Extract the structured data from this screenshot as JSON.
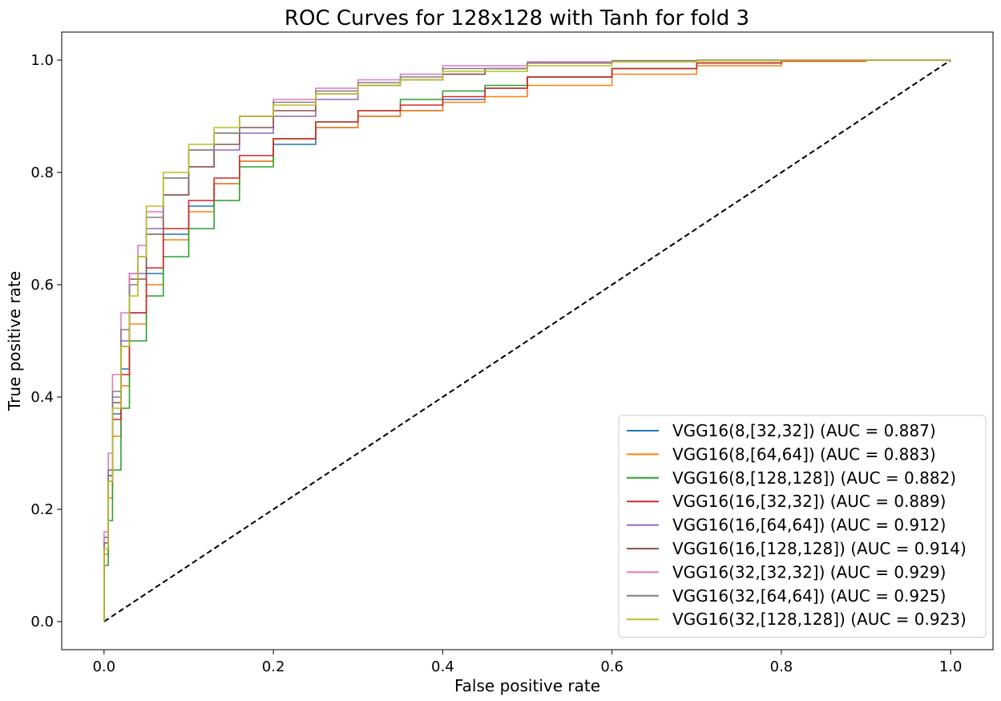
{
  "chart_data": {
    "type": "line",
    "title": "ROC Curves for 128x128 with Tanh for fold 3",
    "xlabel": "False positive rate",
    "ylabel": "True positive rate",
    "xlim": [
      -0.05,
      1.05
    ],
    "ylim": [
      -0.05,
      1.05
    ],
    "xticks": [
      0.0,
      0.2,
      0.4,
      0.6,
      0.8,
      1.0
    ],
    "yticks": [
      0.0,
      0.2,
      0.4,
      0.6,
      0.8,
      1.0
    ],
    "xtick_labels": [
      "0.0",
      "0.2",
      "0.4",
      "0.6",
      "0.8",
      "1.0"
    ],
    "ytick_labels": [
      "0.0",
      "0.2",
      "0.4",
      "0.6",
      "0.8",
      "1.0"
    ],
    "grid": false,
    "legend_position": "bottom-right",
    "reference_line": {
      "x": [
        0,
        1
      ],
      "y": [
        0,
        1
      ],
      "color": "#000000",
      "style": "dashed"
    },
    "series": [
      {
        "name": "VGG16(8,[32,32]) (AUC = 0.887)",
        "color": "#1f77b4",
        "x": [
          0,
          0.005,
          0.01,
          0.02,
          0.03,
          0.05,
          0.07,
          0.1,
          0.13,
          0.16,
          0.2,
          0.25,
          0.3,
          0.35,
          0.4,
          0.45,
          0.5,
          0.6,
          0.7,
          0.8,
          0.9,
          1.0
        ],
        "y": [
          0,
          0.15,
          0.26,
          0.37,
          0.45,
          0.55,
          0.62,
          0.69,
          0.74,
          0.78,
          0.82,
          0.85,
          0.88,
          0.9,
          0.91,
          0.93,
          0.95,
          0.97,
          0.985,
          0.995,
          0.999,
          1.0
        ]
      },
      {
        "name": "VGG16(8,[64,64]) (AUC = 0.883)",
        "color": "#ff7f0e",
        "x": [
          0,
          0.005,
          0.01,
          0.02,
          0.03,
          0.05,
          0.07,
          0.1,
          0.13,
          0.16,
          0.2,
          0.25,
          0.3,
          0.35,
          0.4,
          0.45,
          0.5,
          0.6,
          0.7,
          0.8,
          0.9,
          1.0
        ],
        "y": [
          0,
          0.12,
          0.22,
          0.33,
          0.42,
          0.53,
          0.6,
          0.68,
          0.73,
          0.78,
          0.82,
          0.86,
          0.88,
          0.9,
          0.91,
          0.925,
          0.935,
          0.955,
          0.975,
          0.99,
          0.998,
          1.0
        ]
      },
      {
        "name": "VGG16(8,[128,128]) (AUC = 0.882)",
        "color": "#2ca02c",
        "x": [
          0,
          0.005,
          0.01,
          0.02,
          0.03,
          0.05,
          0.07,
          0.1,
          0.13,
          0.16,
          0.2,
          0.25,
          0.3,
          0.35,
          0.4,
          0.45,
          0.5,
          0.6,
          0.7,
          0.8,
          0.9,
          1.0
        ],
        "y": [
          0,
          0.1,
          0.18,
          0.27,
          0.38,
          0.5,
          0.58,
          0.65,
          0.7,
          0.75,
          0.81,
          0.86,
          0.89,
          0.91,
          0.93,
          0.945,
          0.955,
          0.97,
          0.985,
          0.995,
          0.999,
          1.0
        ]
      },
      {
        "name": "VGG16(16,[32,32]) (AUC = 0.889)",
        "color": "#d62728",
        "x": [
          0,
          0.005,
          0.01,
          0.02,
          0.03,
          0.05,
          0.07,
          0.1,
          0.13,
          0.16,
          0.2,
          0.25,
          0.3,
          0.35,
          0.4,
          0.45,
          0.5,
          0.6,
          0.7,
          0.8,
          0.9,
          1.0
        ],
        "y": [
          0,
          0.14,
          0.25,
          0.36,
          0.44,
          0.55,
          0.63,
          0.7,
          0.75,
          0.79,
          0.83,
          0.86,
          0.89,
          0.91,
          0.92,
          0.935,
          0.95,
          0.97,
          0.985,
          0.995,
          0.999,
          1.0
        ]
      },
      {
        "name": "VGG16(16,[64,64]) (AUC = 0.912)",
        "color": "#9467bd",
        "x": [
          0,
          0.005,
          0.01,
          0.02,
          0.03,
          0.05,
          0.07,
          0.1,
          0.13,
          0.16,
          0.2,
          0.25,
          0.3,
          0.35,
          0.4,
          0.45,
          0.5,
          0.6,
          0.7,
          0.8,
          0.9,
          1.0
        ],
        "y": [
          0,
          0.15,
          0.27,
          0.4,
          0.5,
          0.62,
          0.7,
          0.76,
          0.81,
          0.84,
          0.87,
          0.9,
          0.93,
          0.955,
          0.965,
          0.975,
          0.985,
          0.995,
          0.998,
          0.999,
          1.0,
          1.0
        ]
      },
      {
        "name": "VGG16(16,[128,128]) (AUC = 0.914)",
        "color": "#8c564b",
        "x": [
          0,
          0.005,
          0.01,
          0.02,
          0.03,
          0.05,
          0.07,
          0.1,
          0.13,
          0.16,
          0.2,
          0.25,
          0.3,
          0.35,
          0.4,
          0.45,
          0.5,
          0.6,
          0.7,
          0.8,
          0.9,
          1.0
        ],
        "y": [
          0,
          0.14,
          0.26,
          0.39,
          0.49,
          0.61,
          0.69,
          0.76,
          0.81,
          0.85,
          0.88,
          0.91,
          0.94,
          0.955,
          0.965,
          0.975,
          0.985,
          0.995,
          0.998,
          0.999,
          1.0,
          1.0
        ]
      },
      {
        "name": "VGG16(32,[32,32]) (AUC = 0.929)",
        "color": "#e377c2",
        "x": [
          0,
          0.005,
          0.01,
          0.02,
          0.03,
          0.04,
          0.05,
          0.07,
          0.1,
          0.13,
          0.16,
          0.2,
          0.25,
          0.3,
          0.35,
          0.4,
          0.5,
          0.6,
          0.7,
          0.8,
          0.9,
          1.0
        ],
        "y": [
          0,
          0.16,
          0.3,
          0.44,
          0.55,
          0.62,
          0.67,
          0.73,
          0.79,
          0.84,
          0.87,
          0.9,
          0.93,
          0.95,
          0.965,
          0.975,
          0.99,
          0.997,
          0.999,
          1.0,
          1.0,
          1.0
        ]
      },
      {
        "name": "VGG16(32,[64,64]) (AUC = 0.925)",
        "color": "#7f7f7f",
        "x": [
          0,
          0.005,
          0.01,
          0.02,
          0.03,
          0.04,
          0.05,
          0.07,
          0.1,
          0.13,
          0.16,
          0.2,
          0.25,
          0.3,
          0.35,
          0.4,
          0.5,
          0.6,
          0.7,
          0.8,
          0.9,
          1.0
        ],
        "y": [
          0,
          0.14,
          0.27,
          0.41,
          0.52,
          0.6,
          0.65,
          0.72,
          0.79,
          0.84,
          0.87,
          0.9,
          0.925,
          0.945,
          0.96,
          0.97,
          0.985,
          0.995,
          0.999,
          1.0,
          1.0,
          1.0
        ]
      },
      {
        "name": "VGG16(32,[128,128]) (AUC = 0.923)",
        "color": "#bcbd22",
        "x": [
          0,
          0.005,
          0.01,
          0.02,
          0.03,
          0.04,
          0.05,
          0.07,
          0.1,
          0.13,
          0.16,
          0.2,
          0.25,
          0.3,
          0.35,
          0.4,
          0.5,
          0.6,
          0.7,
          0.8,
          0.9,
          1.0
        ],
        "y": [
          0,
          0.13,
          0.25,
          0.38,
          0.49,
          0.58,
          0.65,
          0.74,
          0.8,
          0.85,
          0.88,
          0.9,
          0.92,
          0.94,
          0.955,
          0.965,
          0.98,
          0.99,
          0.997,
          0.999,
          1.0,
          1.0
        ]
      }
    ]
  }
}
